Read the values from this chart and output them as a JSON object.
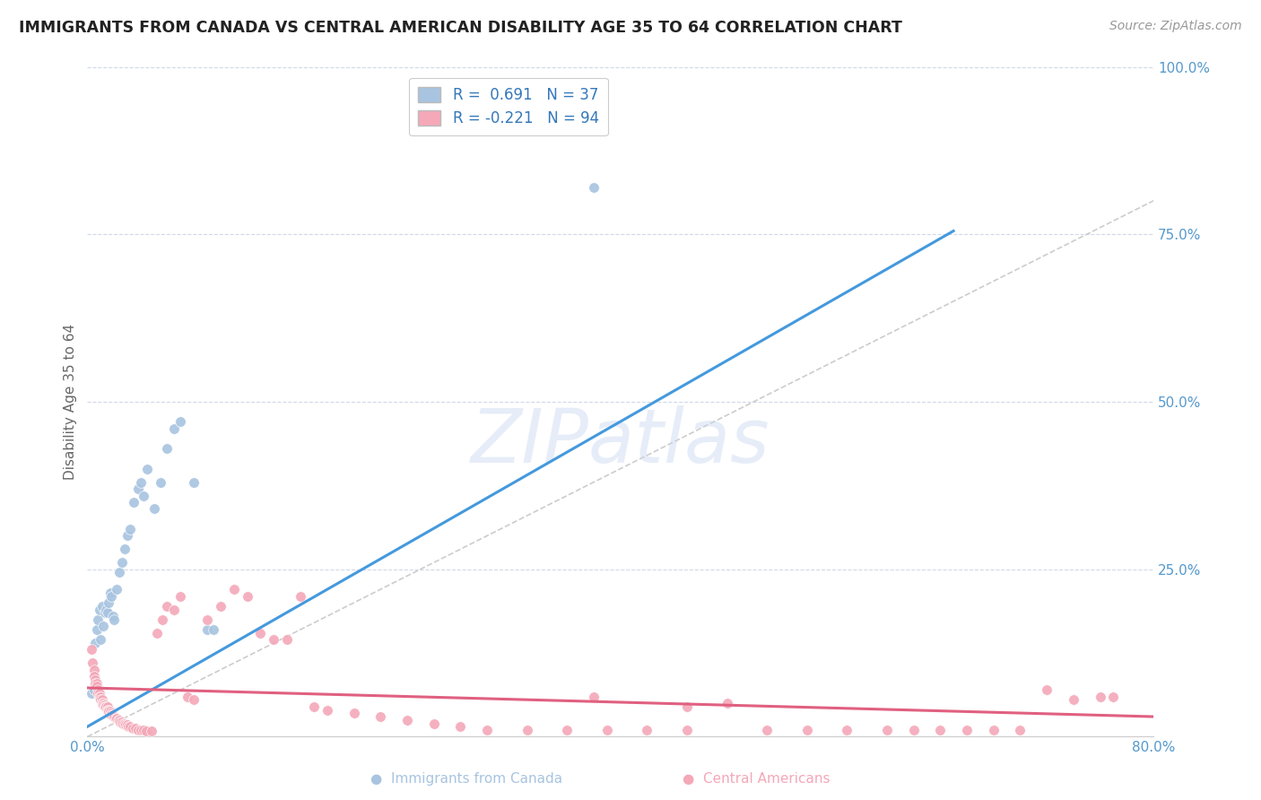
{
  "title": "IMMIGRANTS FROM CANADA VS CENTRAL AMERICAN DISABILITY AGE 35 TO 64 CORRELATION CHART",
  "source": "Source: ZipAtlas.com",
  "ylabel": "Disability Age 35 to 64",
  "xlim": [
    0.0,
    0.8
  ],
  "ylim": [
    0.0,
    1.0
  ],
  "r_canada": 0.691,
  "n_canada": 37,
  "r_central": -0.221,
  "n_central": 94,
  "color_canada": "#a8c4e0",
  "color_central": "#f4a8b8",
  "line_color_canada": "#4499dd",
  "line_color_central": "#e06080",
  "diagonal_color": "#cccccc",
  "watermark": "ZIPatlas",
  "canada_line_x0": 0.0,
  "canada_line_y0": 0.015,
  "canada_line_x1": 0.65,
  "canada_line_y1": 0.755,
  "central_line_x0": 0.0,
  "central_line_y0": 0.073,
  "central_line_x1": 0.8,
  "central_line_y1": 0.03,
  "canada_x": [
    0.003,
    0.005,
    0.006,
    0.007,
    0.008,
    0.009,
    0.01,
    0.011,
    0.012,
    0.013,
    0.014,
    0.015,
    0.016,
    0.017,
    0.018,
    0.019,
    0.02,
    0.022,
    0.024,
    0.026,
    0.028,
    0.03,
    0.032,
    0.035,
    0.038,
    0.04,
    0.042,
    0.045,
    0.05,
    0.055,
    0.06,
    0.065,
    0.07,
    0.08,
    0.09,
    0.095,
    0.38
  ],
  "canada_y": [
    0.065,
    0.07,
    0.14,
    0.16,
    0.175,
    0.19,
    0.145,
    0.195,
    0.165,
    0.185,
    0.19,
    0.185,
    0.2,
    0.215,
    0.21,
    0.18,
    0.175,
    0.22,
    0.245,
    0.26,
    0.28,
    0.3,
    0.31,
    0.35,
    0.37,
    0.38,
    0.36,
    0.4,
    0.34,
    0.38,
    0.43,
    0.46,
    0.47,
    0.38,
    0.16,
    0.16,
    0.82
  ],
  "central_x": [
    0.003,
    0.004,
    0.005,
    0.005,
    0.006,
    0.006,
    0.007,
    0.007,
    0.008,
    0.008,
    0.009,
    0.009,
    0.01,
    0.01,
    0.011,
    0.011,
    0.012,
    0.012,
    0.013,
    0.013,
    0.014,
    0.015,
    0.015,
    0.016,
    0.016,
    0.017,
    0.018,
    0.018,
    0.019,
    0.02,
    0.02,
    0.021,
    0.022,
    0.023,
    0.024,
    0.025,
    0.026,
    0.027,
    0.028,
    0.029,
    0.03,
    0.031,
    0.032,
    0.034,
    0.036,
    0.038,
    0.04,
    0.042,
    0.044,
    0.048,
    0.052,
    0.056,
    0.06,
    0.065,
    0.07,
    0.075,
    0.08,
    0.09,
    0.1,
    0.11,
    0.12,
    0.13,
    0.14,
    0.15,
    0.16,
    0.17,
    0.18,
    0.2,
    0.22,
    0.24,
    0.26,
    0.28,
    0.3,
    0.33,
    0.36,
    0.39,
    0.42,
    0.45,
    0.48,
    0.51,
    0.54,
    0.57,
    0.6,
    0.62,
    0.64,
    0.66,
    0.68,
    0.7,
    0.72,
    0.74,
    0.76,
    0.77,
    0.45,
    0.38
  ],
  "central_y": [
    0.13,
    0.11,
    0.1,
    0.09,
    0.085,
    0.08,
    0.08,
    0.075,
    0.07,
    0.065,
    0.065,
    0.06,
    0.06,
    0.055,
    0.055,
    0.05,
    0.05,
    0.048,
    0.048,
    0.045,
    0.045,
    0.045,
    0.04,
    0.04,
    0.038,
    0.038,
    0.035,
    0.033,
    0.033,
    0.03,
    0.03,
    0.028,
    0.028,
    0.025,
    0.025,
    0.022,
    0.022,
    0.02,
    0.02,
    0.018,
    0.018,
    0.015,
    0.015,
    0.013,
    0.013,
    0.01,
    0.01,
    0.01,
    0.008,
    0.008,
    0.155,
    0.175,
    0.195,
    0.19,
    0.21,
    0.06,
    0.055,
    0.175,
    0.195,
    0.22,
    0.21,
    0.155,
    0.145,
    0.145,
    0.21,
    0.045,
    0.04,
    0.035,
    0.03,
    0.025,
    0.02,
    0.015,
    0.01,
    0.01,
    0.01,
    0.01,
    0.01,
    0.01,
    0.05,
    0.01,
    0.01,
    0.01,
    0.01,
    0.01,
    0.01,
    0.01,
    0.01,
    0.01,
    0.07,
    0.055,
    0.06,
    0.06,
    0.045,
    0.06
  ]
}
